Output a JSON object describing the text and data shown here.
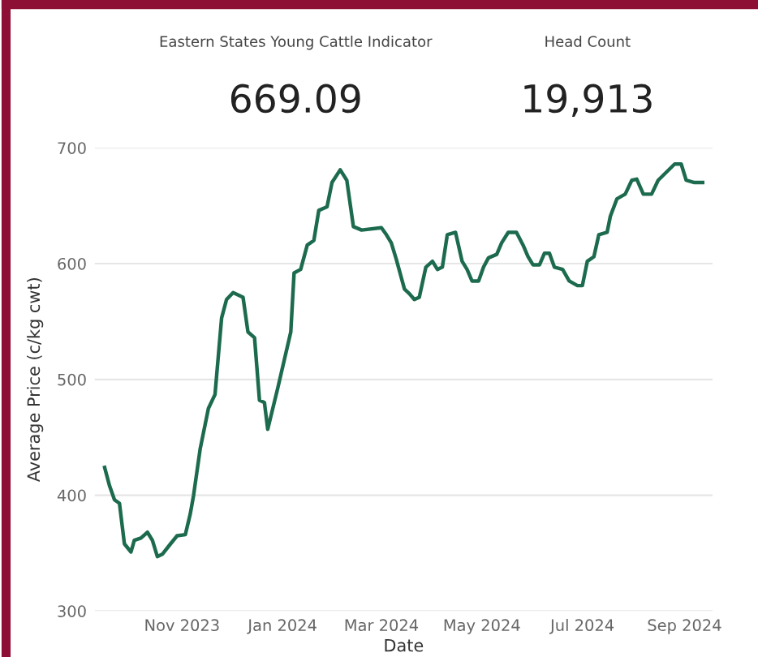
{
  "chart_data": {
    "type": "line",
    "xlabel": "Date",
    "ylabel": "Average Price (c/kg cwt)",
    "annotations": [
      "Eastern States Young Cattle Indicator",
      "669.09",
      "Head Count",
      "19,913"
    ],
    "x": [
      "2023-09-15",
      "2023-09-18",
      "2023-09-21",
      "2023-09-24",
      "2023-09-27",
      "2023-10-01",
      "2023-10-03",
      "2023-10-07",
      "2023-10-11",
      "2023-10-14",
      "2023-10-17",
      "2023-10-20",
      "2023-10-25",
      "2023-10-29",
      "2023-11-03",
      "2023-11-06",
      "2023-11-08",
      "2023-11-12",
      "2023-11-17",
      "2023-11-21",
      "2023-11-25",
      "2023-11-28",
      "2023-12-02",
      "2023-12-08",
      "2023-12-11",
      "2023-12-15",
      "2023-12-18",
      "2023-12-21",
      "2023-12-23",
      "2023-12-29",
      "2024-01-06",
      "2024-01-08",
      "2024-01-12",
      "2024-01-16",
      "2024-01-20",
      "2024-01-23",
      "2024-01-28",
      "2024-01-31",
      "2024-02-05",
      "2024-02-09",
      "2024-02-13",
      "2024-02-18",
      "2024-03-01",
      "2024-03-04",
      "2024-03-07",
      "2024-03-10",
      "2024-03-15",
      "2024-03-18",
      "2024-03-21",
      "2024-03-24",
      "2024-03-28",
      "2024-04-01",
      "2024-04-04",
      "2024-04-07",
      "2024-04-10",
      "2024-04-15",
      "2024-04-19",
      "2024-04-22",
      "2024-04-25",
      "2024-04-29",
      "2024-05-02",
      "2024-05-05",
      "2024-05-10",
      "2024-05-13",
      "2024-05-17",
      "2024-05-22",
      "2024-05-26",
      "2024-05-29",
      "2024-06-01",
      "2024-06-05",
      "2024-06-08",
      "2024-06-11",
      "2024-06-14",
      "2024-06-19",
      "2024-06-23",
      "2024-06-28",
      "2024-07-01",
      "2024-07-04",
      "2024-07-08",
      "2024-07-11",
      "2024-07-16",
      "2024-07-18",
      "2024-07-22",
      "2024-07-27",
      "2024-07-31",
      "2024-08-03",
      "2024-08-07",
      "2024-08-12",
      "2024-08-16",
      "2024-08-21",
      "2024-08-26",
      "2024-08-30",
      "2024-09-02",
      "2024-09-07",
      "2024-09-12"
    ],
    "series": [
      {
        "color": "#1d6b4e",
        "values": [
          424,
          408,
          396,
          393,
          358,
          351,
          361,
          363,
          368,
          361,
          347,
          349,
          358,
          365,
          366,
          384,
          400,
          440,
          475,
          487,
          553,
          569,
          575,
          571,
          541,
          536,
          482,
          480,
          457,
          492,
          541,
          592,
          595,
          616,
          620,
          646,
          649,
          670,
          681,
          672,
          632,
          629,
          631,
          625,
          618,
          604,
          578,
          574,
          569,
          571,
          597,
          602,
          595,
          597,
          625,
          627,
          602,
          595,
          585,
          585,
          597,
          605,
          608,
          618,
          627,
          627,
          616,
          606,
          599,
          599,
          609,
          609,
          597,
          595,
          585,
          581,
          581,
          602,
          606,
          625,
          627,
          641,
          656,
          660,
          672,
          673,
          660,
          660,
          672,
          679,
          686,
          686,
          672,
          670,
          670
        ]
      }
    ],
    "xlim": [
      "2023-09-09",
      "2024-09-18"
    ],
    "xticks": [
      {
        "value": "2023-11-01",
        "label": "Nov 2023"
      },
      {
        "value": "2024-01-01",
        "label": "Jan 2024"
      },
      {
        "value": "2024-03-01",
        "label": "Mar 2024"
      },
      {
        "value": "2024-05-01",
        "label": "May 2024"
      },
      {
        "value": "2024-07-01",
        "label": "Jul 2024"
      },
      {
        "value": "2024-09-01",
        "label": "Sep 2024"
      }
    ],
    "ylim": [
      300,
      700
    ],
    "yticks": [
      300,
      400,
      500,
      600,
      700
    ],
    "grid": "y",
    "marker": "none",
    "line_style": "solid",
    "legend": false
  }
}
